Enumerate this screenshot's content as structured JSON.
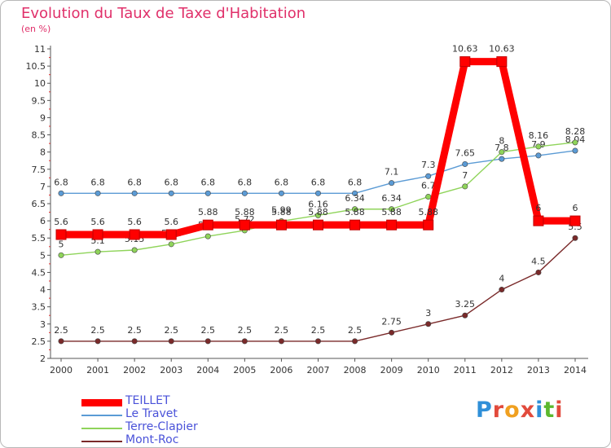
{
  "header": {
    "title": "Evolution du Taux de Taxe d'Habitation",
    "subtitle": "(en %)"
  },
  "logo": {
    "text": "Proxiti",
    "letter_colors": [
      "#2f8fd8",
      "#e24a3c",
      "#f0a020",
      "#e24a3c",
      "#2f8fd8",
      "#5cb82e",
      "#e24a3c"
    ]
  },
  "chart_data": {
    "type": "line",
    "title": "Evolution du Taux de Taxe d'Habitation",
    "ylabel": "(en %)",
    "x": [
      "2000",
      "2001",
      "2002",
      "2003",
      "2004",
      "2005",
      "2006",
      "2007",
      "2008",
      "2009",
      "2010",
      "2011",
      "2012",
      "2013",
      "2014"
    ],
    "ylim": [
      2,
      11
    ],
    "yticks": [
      "2",
      "2.5",
      "3",
      "3.5",
      "4",
      "4.5",
      "5",
      "5.5",
      "6",
      "6.5",
      "7",
      "7.5",
      "8",
      "8.5",
      "9",
      "9.5",
      "10",
      "10.5",
      "11"
    ],
    "grid": false,
    "legend_position": "bottom-left",
    "series": [
      {
        "name": "TEILLET",
        "color": "#ff0000",
        "values": [
          5.6,
          5.6,
          5.6,
          5.6,
          5.88,
          5.88,
          5.88,
          5.88,
          5.88,
          5.88,
          5.88,
          10.63,
          10.63,
          6,
          6
        ],
        "labels": [
          "5.6",
          "5.6",
          "5.6",
          "5.6",
          "5.88",
          "5.88",
          "5.88",
          "5.88",
          "5.88",
          "5.88",
          "5.88",
          "10.63",
          "10.63",
          "6",
          "6"
        ]
      },
      {
        "name": "Le Travet",
        "color": "#5b9bd5",
        "values": [
          6.8,
          6.8,
          6.8,
          6.8,
          6.8,
          6.8,
          6.8,
          6.8,
          6.8,
          7.1,
          7.3,
          7.65,
          7.8,
          7.9,
          8.04
        ],
        "labels": [
          "6.8",
          "6.8",
          "6.8",
          "6.8",
          "6.8",
          "6.8",
          "6.8",
          "6.8",
          "6.8",
          "7.1",
          "7.3",
          "7.65",
          "7.8",
          "7.9",
          "8.04"
        ]
      },
      {
        "name": "Terre-Clapier",
        "color": "#8fd45a",
        "values": [
          5,
          5.1,
          5.15,
          5.32,
          5.55,
          5.72,
          5.99,
          6.16,
          6.34,
          6.34,
          6.7,
          7,
          8,
          8.16,
          8.28
        ],
        "labels": [
          "5",
          "5.1",
          "5.15",
          "5.32",
          "5.55",
          "5.72",
          "5.99",
          "6.16",
          "6.34",
          "6.34",
          "6.7",
          "7",
          "8",
          "8.16",
          "8.28"
        ]
      },
      {
        "name": "Mont-Roc",
        "color": "#7a2a2a",
        "values": [
          2.5,
          2.5,
          2.5,
          2.5,
          2.5,
          2.5,
          2.5,
          2.5,
          2.5,
          2.75,
          3,
          3.25,
          4,
          4.5,
          5.5
        ],
        "labels": [
          "2.5",
          "2.5",
          "2.5",
          "2.5",
          "2.5",
          "2.5",
          "2.5",
          "2.5",
          "2.5",
          "2.75",
          "3",
          "3.25",
          "4",
          "4.5",
          "5.5"
        ]
      }
    ]
  }
}
